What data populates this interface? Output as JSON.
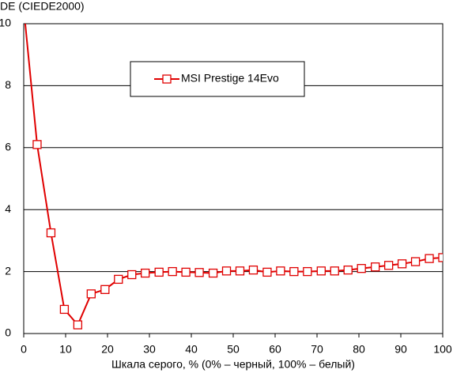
{
  "chart_data": {
    "type": "line",
    "y_label": "DE (CIEDE2000)",
    "x_label": "Шкала серого, % (0% – черный, 100% – белый)",
    "x": [
      0,
      3.2,
      6.5,
      9.7,
      12.9,
      16.1,
      19.4,
      22.6,
      25.8,
      29,
      32.3,
      35.5,
      38.7,
      41.9,
      45.2,
      48.4,
      51.6,
      54.8,
      58.1,
      61.3,
      64.5,
      67.7,
      71,
      74.2,
      77.4,
      80.6,
      83.9,
      87.1,
      90.3,
      93.5,
      96.8,
      100
    ],
    "series": [
      {
        "name": "MSI Prestige 14Evo",
        "color": "#e00000",
        "values": [
          10.5,
          6.1,
          3.25,
          0.78,
          0.28,
          1.28,
          1.42,
          1.75,
          1.9,
          1.95,
          1.98,
          2.0,
          1.98,
          1.97,
          1.95,
          2.02,
          2.02,
          2.05,
          1.98,
          2.02,
          2.0,
          2.0,
          2.02,
          2.02,
          2.05,
          2.1,
          2.15,
          2.2,
          2.25,
          2.32,
          2.42,
          2.45
        ]
      }
    ],
    "xlim": [
      0,
      100
    ],
    "xticks": [
      0,
      10,
      20,
      30,
      40,
      50,
      60,
      70,
      80,
      90,
      100
    ],
    "ylim": [
      0,
      10
    ],
    "yticks": [
      0,
      2,
      4,
      6,
      8,
      10
    ],
    "grid": true
  }
}
